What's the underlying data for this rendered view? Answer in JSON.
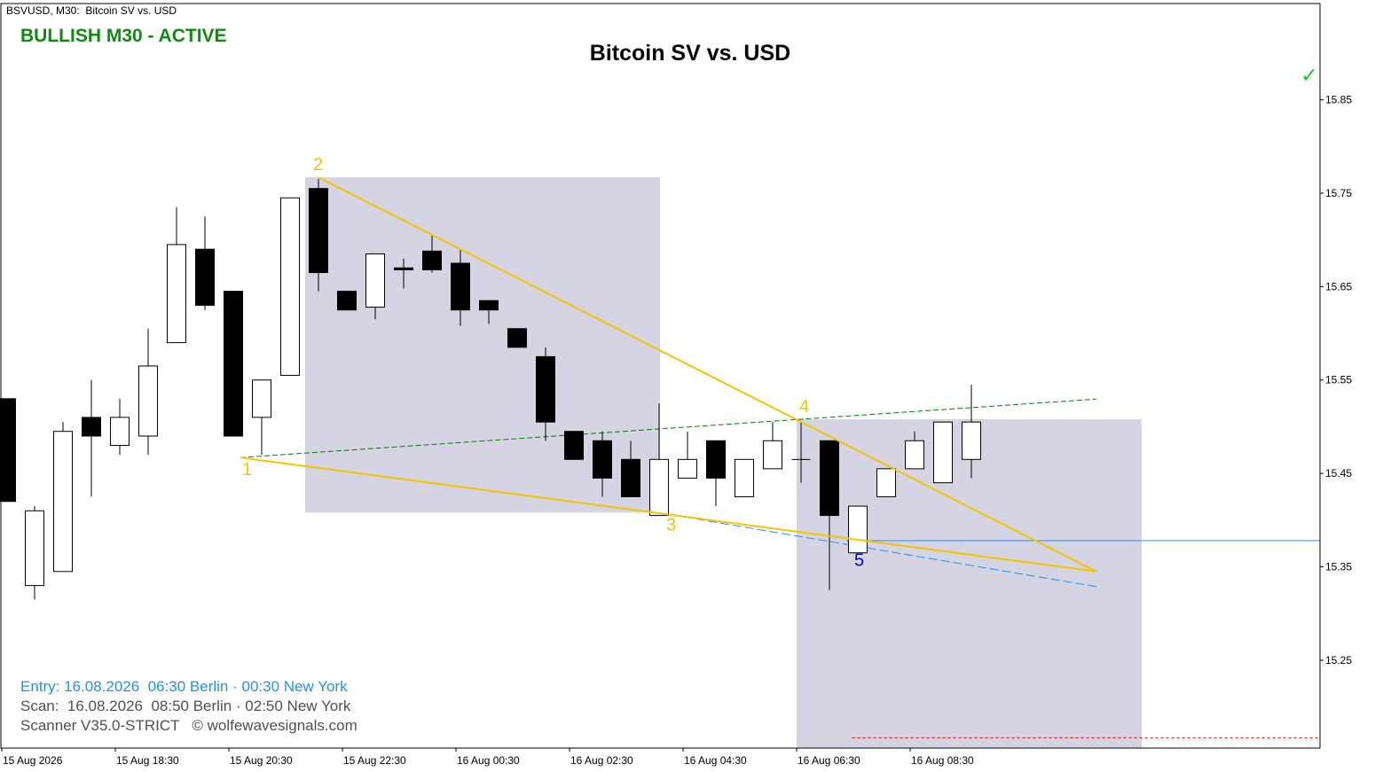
{
  "header": {
    "symbol": "BSVUSD, M30:",
    "name": "Bitcoin SV vs. USD"
  },
  "status": {
    "text": "BULLISH M30 - ACTIVE",
    "color": "#118a11",
    "check_icon": "✓"
  },
  "info": {
    "entry": "Entry: 16.08.2026  06:30 Berlin · 00:30 New York",
    "scan": "Scan:  16.08.2026  08:50 Berlin · 02:50 New York",
    "scanner": "Scanner V35.0-STRICT   © wolfewavesignals.com",
    "entry_color": "#1e90ff",
    "scan_color": "#505050"
  },
  "chart_data": {
    "type": "candlestick",
    "title": "Bitcoin SV vs. USD",
    "symbol": "BSVUSD",
    "timeframe": "M30",
    "grid": false,
    "y_ticks": [
      15.25,
      15.35,
      15.45,
      15.55,
      15.65,
      15.75,
      15.85
    ],
    "y_range": [
      15.156,
      15.953
    ],
    "x_labels": [
      "15 Aug 2026",
      "15 Aug 18:30",
      "15 Aug 20:30",
      "15 Aug 22:30",
      "16 Aug 00:30",
      "16 Aug 02:30",
      "16 Aug 04:30",
      "16 Aug 06:30",
      "16 Aug 08:30"
    ],
    "candles": [
      [
        15.53,
        15.53,
        15.42,
        15.42
      ],
      [
        15.33,
        15.415,
        15.315,
        15.41
      ],
      [
        15.345,
        15.505,
        15.345,
        15.495
      ],
      [
        15.51,
        15.55,
        15.425,
        15.49
      ],
      [
        15.48,
        15.53,
        15.47,
        15.51
      ],
      [
        15.49,
        15.605,
        15.47,
        15.565
      ],
      [
        15.59,
        15.735,
        15.59,
        15.695
      ],
      [
        15.69,
        15.725,
        15.625,
        15.63
      ],
      [
        15.645,
        15.645,
        15.49,
        15.49
      ],
      [
        15.51,
        15.55,
        15.47,
        15.55
      ],
      [
        15.555,
        15.745,
        15.555,
        15.745
      ],
      [
        15.755,
        15.765,
        15.645,
        15.665
      ],
      [
        15.645,
        15.645,
        15.625,
        15.625
      ],
      [
        15.628,
        15.685,
        15.615,
        15.685
      ],
      [
        15.67,
        15.68,
        15.648,
        15.668
      ],
      [
        15.688,
        15.705,
        15.665,
        15.668
      ],
      [
        15.675,
        15.69,
        15.608,
        15.625
      ],
      [
        15.635,
        15.635,
        15.61,
        15.625
      ],
      [
        15.605,
        15.605,
        15.585,
        15.585
      ],
      [
        15.575,
        15.585,
        15.485,
        15.505
      ],
      [
        15.495,
        15.495,
        15.465,
        15.465
      ],
      [
        15.485,
        15.495,
        15.425,
        15.445
      ],
      [
        15.465,
        15.485,
        15.425,
        15.425
      ],
      [
        15.405,
        15.525,
        15.405,
        15.465
      ],
      [
        15.445,
        15.495,
        15.445,
        15.465
      ],
      [
        15.485,
        15.485,
        15.415,
        15.445
      ],
      [
        15.425,
        15.465,
        15.425,
        15.465
      ],
      [
        15.455,
        15.505,
        15.455,
        15.485
      ],
      [
        15.465,
        15.505,
        15.44,
        15.465
      ],
      [
        15.485,
        15.485,
        15.325,
        15.405
      ],
      [
        15.365,
        15.415,
        15.365,
        15.415
      ],
      [
        15.425,
        15.455,
        15.425,
        15.455
      ],
      [
        15.455,
        15.495,
        15.455,
        15.485
      ],
      [
        15.44,
        15.505,
        15.44,
        15.505
      ],
      [
        15.465,
        15.545,
        15.445,
        15.505
      ]
    ],
    "wolfe_points": [
      {
        "label": "1",
        "price": 15.467
      },
      {
        "label": "2",
        "price": 15.767
      },
      {
        "label": "3",
        "price": 15.408
      },
      {
        "label": "4",
        "price": 15.508
      },
      {
        "label": "5",
        "price": 15.372
      }
    ],
    "point_colors": {
      "1-4": "#f5c400",
      "5": "#0000ee"
    },
    "line_colors": {
      "wedge": "#f5c400",
      "target": "#008000",
      "projection": "#1e90ff",
      "entry_level": "#1e90ff",
      "stop": "#dd0000",
      "zone": "#d4d4e2"
    },
    "entry_level": 15.378,
    "stop_level": 15.167
  }
}
